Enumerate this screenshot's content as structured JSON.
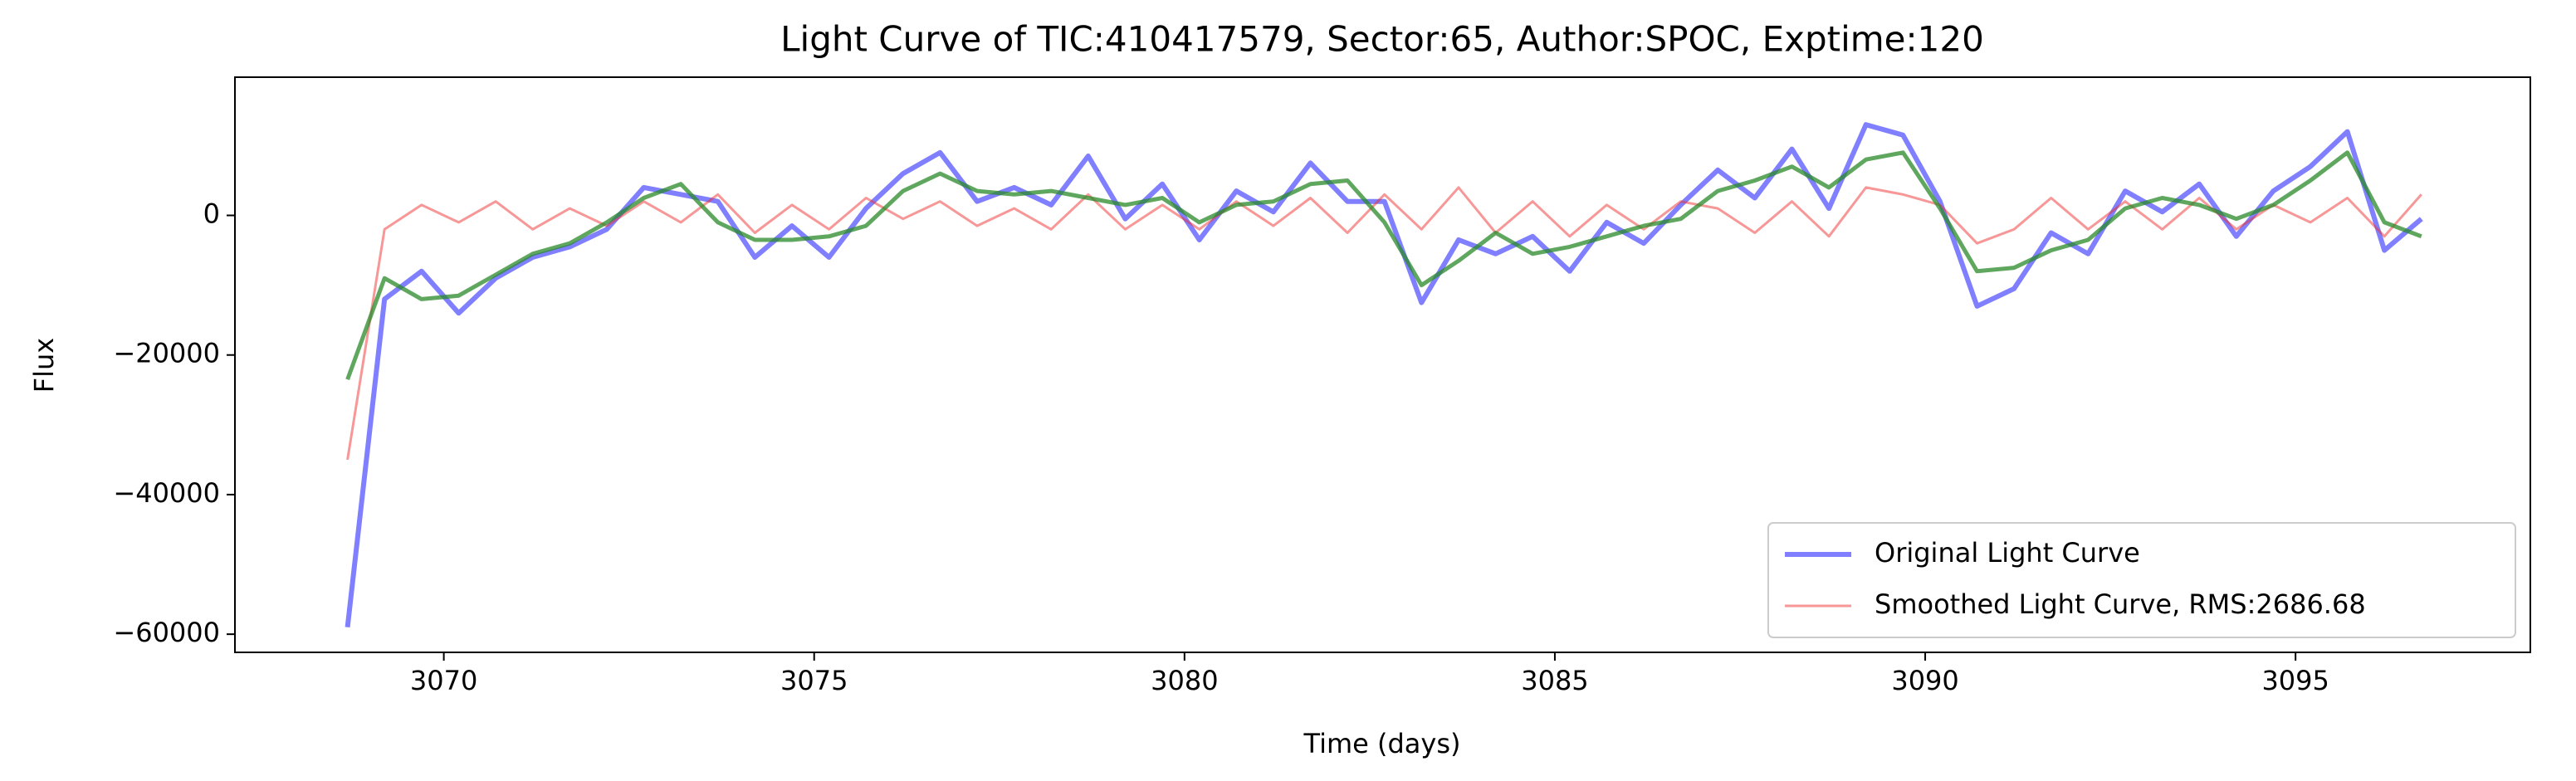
{
  "chart_data": {
    "type": "line",
    "title": "Light Curve of TIC:410417579, Sector:65, Author:SPOC, Exptime:120",
    "xlabel": "Time (days)",
    "ylabel": "Flux",
    "x": [
      3068.7,
      3069.2,
      3069.7,
      3070.2,
      3070.7,
      3071.2,
      3071.7,
      3072.2,
      3072.7,
      3073.2,
      3073.7,
      3074.2,
      3074.7,
      3075.2,
      3075.7,
      3076.2,
      3076.7,
      3077.2,
      3077.7,
      3078.2,
      3078.7,
      3079.2,
      3079.7,
      3080.2,
      3080.7,
      3081.2,
      3081.7,
      3082.2,
      3082.7,
      3083.2,
      3083.7,
      3084.2,
      3084.7,
      3085.2,
      3085.7,
      3086.2,
      3086.7,
      3087.2,
      3087.7,
      3088.2,
      3088.7,
      3089.2,
      3089.7,
      3090.2,
      3090.7,
      3091.2,
      3091.7,
      3092.2,
      3092.7,
      3093.2,
      3093.7,
      3094.2,
      3094.7,
      3095.2,
      3095.7,
      3096.2,
      3096.7
    ],
    "series": [
      {
        "name": "Original Light Curve",
        "color": "#0000ff",
        "values": [
          -59000,
          -12000,
          -8000,
          -14000,
          -9000,
          -6000,
          -4500,
          -2000,
          4000,
          3000,
          2000,
          -6000,
          -1500,
          -6000,
          1000,
          6000,
          9000,
          2000,
          4000,
          1500,
          8500,
          -500,
          4500,
          -3500,
          3500,
          500,
          7500,
          2000,
          2000,
          -12500,
          -3500,
          -5500,
          -3000,
          -8000,
          -1000,
          -4000,
          1500,
          6500,
          2500,
          9500,
          1000,
          13000,
          11500,
          2000,
          -13000,
          -10500,
          -2500,
          -5500,
          3500,
          500,
          4500,
          -3000,
          3500,
          7000,
          12000,
          -5000,
          -500
        ]
      },
      {
        "name": "Smoothed Light Curve, RMS:2686.68",
        "color": "#f03030",
        "values": [
          -35000,
          -2000,
          1500,
          -1000,
          2000,
          -2000,
          1000,
          -1500,
          2000,
          -1000,
          3000,
          -2500,
          1500,
          -2000,
          2500,
          -500,
          2000,
          -1500,
          1000,
          -2000,
          3000,
          -2000,
          1500,
          -2000,
          2000,
          -1500,
          2500,
          -2500,
          3000,
          -2000,
          4000,
          -2500,
          2000,
          -3000,
          1500,
          -2000,
          2000,
          1000,
          -2500,
          2000,
          -3000,
          4000,
          3000,
          1500,
          -4000,
          -2000,
          2500,
          -2000,
          2000,
          -2000,
          2500,
          -2000,
          1500,
          -1000,
          2500,
          -3000,
          3000
        ]
      },
      {
        "color": "#2a8a2a",
        "values": [
          -23500,
          -9000,
          -12000,
          -11500,
          -8500,
          -5500,
          -4000,
          -1000,
          2500,
          4500,
          -1000,
          -3500,
          -3500,
          -3000,
          -1500,
          3500,
          6000,
          3500,
          3000,
          3500,
          2500,
          1500,
          2500,
          -1000,
          1500,
          2000,
          4500,
          5000,
          -1000,
          -10000,
          -6500,
          -2500,
          -5500,
          -4500,
          -3000,
          -1500,
          -500,
          3500,
          5000,
          7000,
          4000,
          8000,
          9000,
          1000,
          -8000,
          -7500,
          -5000,
          -3500,
          1000,
          2500,
          1500,
          -500,
          1500,
          5000,
          9000,
          -1000,
          -3000
        ]
      }
    ],
    "xlim": [
      3067.18,
      3098.17
    ],
    "ylim": [
      -62600,
      19800
    ],
    "xticks": [
      3070,
      3075,
      3080,
      3085,
      3090,
      3095
    ],
    "yticks": [
      {
        "value": -60000,
        "label": "−60000"
      },
      {
        "value": -40000,
        "label": "−40000"
      },
      {
        "value": -20000,
        "label": "−20000"
      },
      0
    ],
    "legend": "lower right"
  }
}
